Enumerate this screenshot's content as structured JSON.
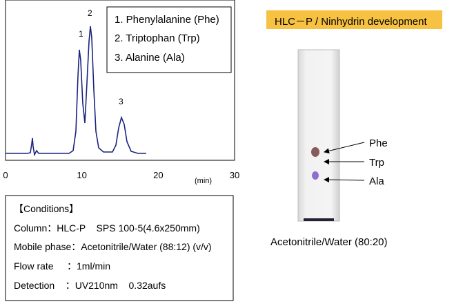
{
  "chromatogram": {
    "peak_labels": [
      "1",
      "2",
      "3"
    ],
    "legend": [
      "1. Phenylalanine (Phe)",
      "2. Triptophan (Trp)",
      "3. Alanine (Ala)"
    ],
    "xticks": [
      0,
      10,
      20,
      30
    ],
    "xlim": [
      0,
      30
    ],
    "xlabel": "(min)"
  },
  "conditions": {
    "title": "【Conditions】",
    "rows": [
      "Column：HLC-P    SPS 100-5(4.6x250mm)",
      "Mobile phase：Acetonitrile/Water (88:12) (v/v)",
      "Flow rate     ：1ml/min",
      "Detection    ：UV210nm    0.32aufs"
    ]
  },
  "plate": {
    "badge": "HLC－P / Ninhydrin development",
    "spots": [
      "Phe",
      "Trp",
      "Ala"
    ],
    "caption": "Acetonitrile/Water (80:20)"
  }
}
